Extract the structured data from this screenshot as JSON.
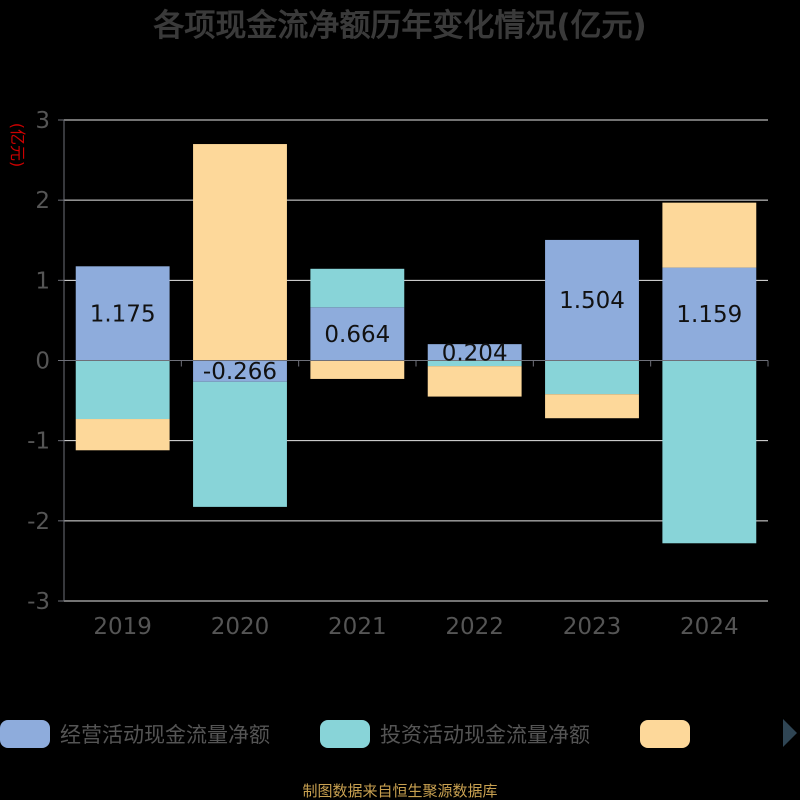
{
  "chart_data": {
    "type": "bar",
    "stacked": true,
    "title": "各项现金流净额历年变化情况(亿元)",
    "ylabel": "(亿元)",
    "categories": [
      "2019",
      "2020",
      "2021",
      "2022",
      "2023",
      "2024"
    ],
    "ylim": [
      -3,
      3
    ],
    "yticks": [
      3,
      2,
      1,
      0,
      -1,
      -2,
      -3
    ],
    "grid": true,
    "legend_position": "bottom",
    "series": [
      {
        "name": "经营活动现金流量净额",
        "color": "#8eacdc",
        "values": [
          1.175,
          -0.266,
          0.664,
          0.204,
          1.504,
          1.159
        ],
        "labels": [
          "1.175",
          "-0.266",
          "0.664",
          "0.204",
          "1.504",
          "1.159"
        ]
      },
      {
        "name": "投资活动现金流量净额",
        "color": "#88d4d8",
        "values": [
          -0.73,
          -1.56,
          0.48,
          -0.07,
          -0.42,
          -2.28
        ]
      },
      {
        "name": "",
        "color": "#fdd89a",
        "values": [
          -0.39,
          2.7,
          -0.23,
          -0.38,
          -0.3,
          0.81
        ]
      }
    ]
  },
  "footer": {
    "source": "制图数据来自恒生聚源数据库"
  }
}
